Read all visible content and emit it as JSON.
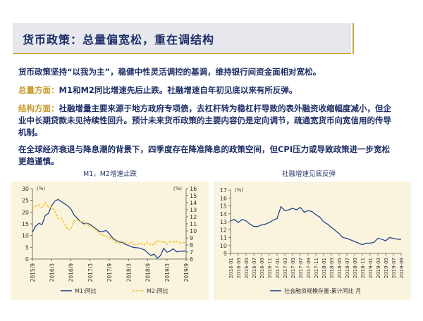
{
  "title": "货币政策：总量偏宽松，重在调结构",
  "paragraphs": [
    {
      "label": "",
      "text": "货币政策坚持“以我为主”，稳健中性灵活调控的基调，维持银行间资金面相对宽松。"
    },
    {
      "label": "总量方面：",
      "text": "M1和M2同比增速先后止跌。社融增速自年初见底以来有所反弹。"
    },
    {
      "label": "结构方面：",
      "text": "社融增量主要来源于地方政府专项债，去杠杆转为稳杠杆导致的表外融资收缩幅度减小，但企业中长期贷款未见持续性回升。预计未来货币政策的主要内容仍是定向调节，疏通宽货币向宽信用的传导机制。"
    },
    {
      "label": "",
      "text": "在全球经济衰退与降息潮的背景下，四季度存在降准降息的政策空间，但CPI压力或导致政策进一步宽松更趋谨慎。"
    }
  ],
  "colors": {
    "navy": "#1d2e67",
    "gold": "#c8982a",
    "panel": "#faf3dd",
    "m1": "#24438f",
    "m2": "#f2c11c"
  },
  "chart_data": [
    {
      "type": "line",
      "title": "M1，M2增速止跌",
      "unit_left": "(%)",
      "unit_right": "(%)",
      "x_ticks": [
        "2015/9",
        "2016/3",
        "2016/9",
        "2017/3",
        "2017/9",
        "2018/3",
        "2018/9",
        "2019/3",
        "2019/9"
      ],
      "ylim_left": [
        0,
        30
      ],
      "yticks_left": [
        "0",
        "5",
        "10",
        "15",
        "20",
        "25",
        "30"
      ],
      "ylim_right": [
        6,
        16
      ],
      "yticks_right": [
        "6",
        "7",
        "8",
        "9",
        "10",
        "11",
        "12",
        "13",
        "14",
        "15",
        "16"
      ],
      "series": [
        {
          "name": "M1:同比",
          "axis": "left",
          "style": "solid",
          "x": [
            0,
            1,
            2,
            3,
            4,
            5,
            6,
            7,
            8,
            9,
            10,
            11,
            12,
            13,
            14,
            15,
            16,
            17,
            18,
            19,
            20,
            21,
            22,
            23,
            24,
            25,
            26,
            27,
            28,
            29,
            30,
            31,
            32,
            33,
            34,
            35,
            36,
            37,
            38,
            39,
            40,
            41,
            42,
            43,
            44,
            45,
            46,
            47,
            48
          ],
          "values": [
            11.4,
            14,
            15.2,
            14.7,
            18.6,
            19.4,
            22.8,
            24.7,
            25.4,
            24.5,
            23.6,
            22.7,
            21.4,
            18.8,
            17.4,
            16,
            15,
            15.3,
            14.8,
            13.7,
            12.7,
            11.8,
            11.7,
            12.2,
            10.8,
            9.1,
            8,
            7.3,
            7.1,
            6.3,
            5.8,
            5.2,
            4.9,
            4.8,
            4.4,
            3.9,
            2.6,
            1.5,
            2.1,
            0.4,
            1.5,
            4.6,
            2.9,
            3.4,
            4.4,
            3.1,
            3.3,
            3.4,
            3.4
          ]
        },
        {
          "name": "M2:同比",
          "axis": "right",
          "style": "dashed",
          "x": [
            0,
            1,
            2,
            3,
            4,
            5,
            6,
            7,
            8,
            9,
            10,
            11,
            12,
            13,
            14,
            15,
            16,
            17,
            18,
            19,
            20,
            21,
            22,
            23,
            24,
            25,
            26,
            27,
            28,
            29,
            30,
            31,
            32,
            33,
            34,
            35,
            36,
            37,
            38,
            39,
            40,
            41,
            42,
            43,
            44,
            45,
            46,
            47,
            48
          ],
          "values": [
            13.1,
            13.5,
            13.7,
            13.3,
            14,
            13.4,
            13.4,
            12.8,
            11.8,
            11.8,
            11.1,
            10.2,
            10.2,
            11.4,
            11.6,
            11.3,
            11.3,
            11,
            10.6,
            10.5,
            10.1,
            9.6,
            9.4,
            9.2,
            9.1,
            8.8,
            8.3,
            8.3,
            8.5,
            8.3,
            8.2,
            8.4,
            8,
            8.1,
            8.2,
            8.0,
            8.4,
            8.0,
            8.1,
            8.6,
            8.4,
            8.5,
            8.1,
            8.5,
            8.4,
            8.5,
            8.3,
            8.3,
            8.4
          ]
        }
      ]
    },
    {
      "type": "line",
      "title": "社融增速见底反弹",
      "unit_left": "(%)",
      "x_ticks": [
        "2016-01",
        "2016-03",
        "2016-05",
        "2016-07",
        "2016-09",
        "2016-11",
        "2017-01",
        "2017-03",
        "2017-05",
        "2017-07",
        "2017-09",
        "2017-11",
        "2018-01",
        "2018-03",
        "2018-05",
        "2018-07",
        "2018-09",
        "2018-11",
        "2019-01",
        "2019-03",
        "2019-05",
        "2019-07",
        "2019-09"
      ],
      "ylim_left": [
        9,
        17
      ],
      "yticks_left": [
        "9",
        "10",
        "11",
        "12",
        "13",
        "14",
        "15",
        "16",
        "17"
      ],
      "series": [
        {
          "name": "社会融资规模存量:累计同比 月",
          "axis": "left",
          "style": "solid",
          "x": [
            0,
            1,
            2,
            3,
            4,
            5,
            6,
            7,
            8,
            9,
            10,
            11,
            12,
            13,
            14,
            15,
            16,
            17,
            18,
            19,
            20,
            21,
            22,
            23,
            24,
            25,
            26,
            27,
            28,
            29,
            30,
            31,
            32,
            33,
            34,
            35,
            36,
            37,
            38,
            39,
            40,
            41,
            42,
            43,
            44
          ],
          "values": [
            13.1,
            13.3,
            12.9,
            13.3,
            13.1,
            12.7,
            12.4,
            12.4,
            12.6,
            12.7,
            12.9,
            13.2,
            13.4,
            14.9,
            14.4,
            14.5,
            14.7,
            14.5,
            14.8,
            14.2,
            14.4,
            14.3,
            13.9,
            13.6,
            13,
            12.7,
            12.3,
            11.9,
            11.5,
            11,
            10.9,
            10.7,
            10.5,
            10.3,
            10.1,
            10.3,
            10.3,
            10.4,
            10.9,
            10.8,
            10.6,
            11,
            10.9,
            10.8,
            10.8
          ]
        }
      ]
    }
  ]
}
